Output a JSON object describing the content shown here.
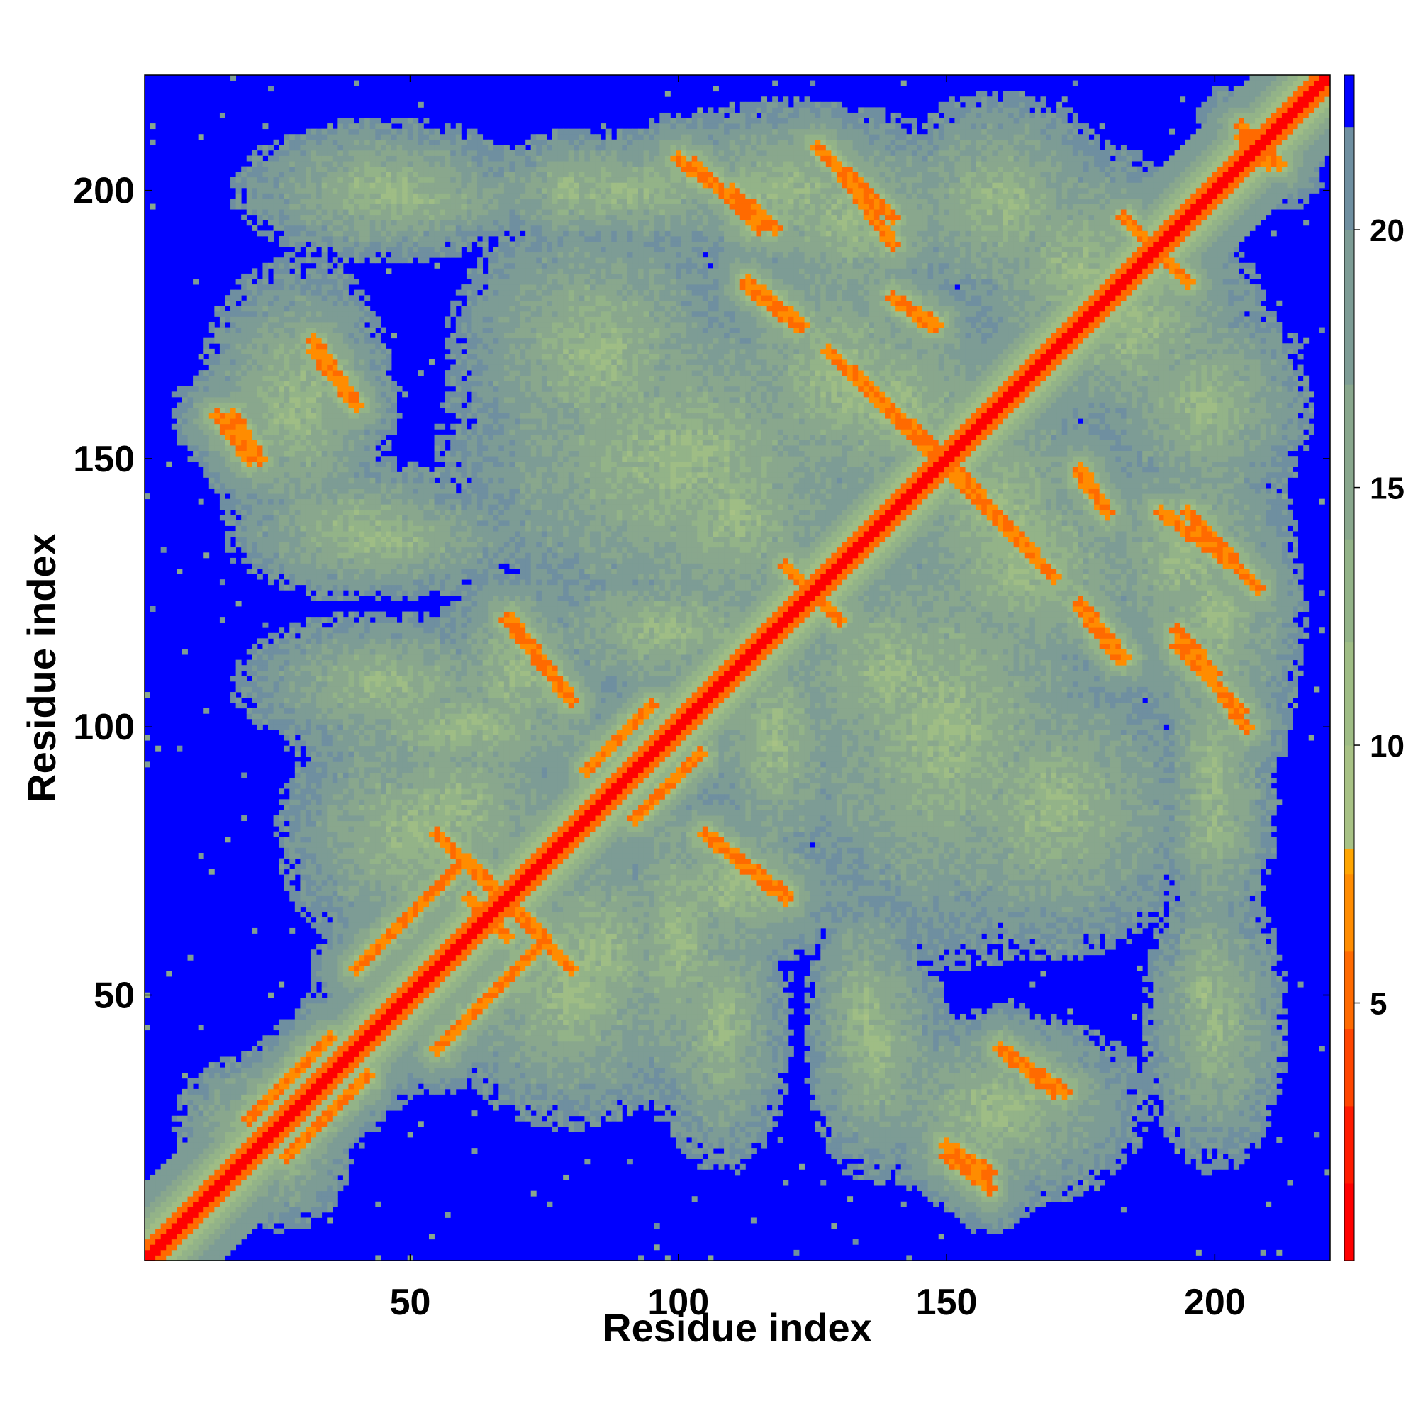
{
  "chart_data": {
    "type": "heatmap",
    "title": "",
    "xlabel": "Residue index",
    "ylabel": "Residue index",
    "xlim": [
      0.5,
      221.5
    ],
    "ylim": [
      0.5,
      221.5
    ],
    "n_residues": 221,
    "x_ticks": [
      50,
      100,
      150,
      200
    ],
    "y_ticks": [
      50,
      100,
      150,
      200
    ],
    "x_tick_labels": [
      "50",
      "100",
      "150",
      "200"
    ],
    "y_tick_labels": [
      "50",
      "100",
      "150",
      "200"
    ],
    "colorbar": {
      "range": [
        0,
        23
      ],
      "ticks": [
        5,
        10,
        15,
        20
      ],
      "tick_labels": [
        "5",
        "10",
        "15",
        "20"
      ],
      "colors": [
        "#ff0000",
        "#ff1a00",
        "#ff4500",
        "#ff6a00",
        "#ff8c00",
        "#ffa500",
        "#a8c285",
        "#9fbd85",
        "#93b388",
        "#89a78d",
        "#7d9c95",
        "#6f8fa0",
        "#0000ff"
      ],
      "bounds": [
        0,
        1.5,
        3,
        4.5,
        6,
        7.5,
        8,
        10,
        12,
        14,
        17,
        20,
        22,
        23
      ]
    },
    "contact_segments": [
      {
        "from": [
          3,
          3
        ],
        "to": [
          220,
          220
        ],
        "kind": "diagonal"
      },
      {
        "from": [
          40,
          55
        ],
        "to": [
          60,
          75
        ],
        "kind": "parallel"
      },
      {
        "from": [
          83,
          92
        ],
        "to": [
          95,
          104
        ],
        "kind": "parallel"
      },
      {
        "from": [
          20,
          27
        ],
        "to": [
          35,
          42
        ],
        "kind": "parallel"
      },
      {
        "from": [
          64,
          72
        ],
        "to": [
          80,
          55
        ],
        "kind": "antiparallel"
      },
      {
        "from": [
          69,
          120
        ],
        "to": [
          80,
          105
        ],
        "kind": "antiparallel"
      },
      {
        "from": [
          105,
          80
        ],
        "to": [
          120,
          68
        ],
        "kind": "antiparallel"
      },
      {
        "from": [
          110,
          200
        ],
        "to": [
          118,
          193
        ],
        "kind": "antiparallel"
      },
      {
        "from": [
          100,
          206
        ],
        "to": [
          105,
          202
        ],
        "kind": "antiparallel"
      },
      {
        "from": [
          130,
          204
        ],
        "to": [
          140,
          190
        ],
        "kind": "antiparallel"
      },
      {
        "from": [
          113,
          182
        ],
        "to": [
          122,
          175
        ],
        "kind": "antiparallel"
      },
      {
        "from": [
          140,
          180
        ],
        "to": [
          147,
          175
        ],
        "kind": "antiparallel"
      },
      {
        "from": [
          130,
          168
        ],
        "to": [
          148,
          150
        ],
        "kind": "antiparallel"
      },
      {
        "from": [
          150,
          150
        ],
        "to": [
          170,
          128
        ],
        "kind": "antiparallel"
      },
      {
        "from": [
          175,
          148
        ],
        "to": [
          180,
          140
        ],
        "kind": "antiparallel"
      },
      {
        "from": [
          195,
          140
        ],
        "to": [
          208,
          126
        ],
        "kind": "antiparallel"
      },
      {
        "from": [
          175,
          123
        ],
        "to": [
          183,
          113
        ],
        "kind": "antiparallel"
      },
      {
        "from": [
          193,
          115
        ],
        "to": [
          205,
          103
        ],
        "kind": "antiparallel"
      },
      {
        "from": [
          183,
          195
        ],
        "to": [
          193,
          185
        ],
        "kind": "antiparallel"
      },
      {
        "from": [
          205,
          212
        ],
        "to": [
          210,
          205
        ],
        "kind": "antiparallel"
      },
      {
        "from": [
          17,
          158
        ],
        "to": [
          22,
          150
        ],
        "kind": "antiparallel"
      },
      {
        "from": [
          32,
          172
        ],
        "to": [
          40,
          160
        ],
        "kind": "antiparallel"
      },
      {
        "from": [
          160,
          40
        ],
        "to": [
          170,
          32
        ],
        "kind": "antiparallel"
      },
      {
        "from": [
          150,
          20
        ],
        "to": [
          158,
          14
        ],
        "kind": "antiparallel"
      },
      {
        "from": [
          125,
          125
        ],
        "to": [
          130,
          120
        ],
        "kind": "antiparallel"
      },
      {
        "from": [
          61,
          68
        ],
        "to": [
          67,
          62
        ],
        "kind": "antiparallel"
      }
    ],
    "contact_regions": [
      {
        "cx": 22,
        "cy": 26,
        "rx": 14,
        "ry": 12
      },
      {
        "cx": 28,
        "cy": 160,
        "rx": 16,
        "ry": 24
      },
      {
        "cx": 45,
        "cy": 135,
        "rx": 26,
        "ry": 10
      },
      {
        "cx": 50,
        "cy": 198,
        "rx": 25,
        "ry": 7
      },
      {
        "cx": 60,
        "cy": 100,
        "rx": 30,
        "ry": 12
      },
      {
        "cx": 58,
        "cy": 85,
        "rx": 22,
        "ry": 18
      },
      {
        "cx": 80,
        "cy": 50,
        "rx": 22,
        "ry": 22
      },
      {
        "cx": 90,
        "cy": 200,
        "rx": 30,
        "ry": 10
      },
      {
        "cx": 100,
        "cy": 150,
        "rx": 40,
        "ry": 30
      },
      {
        "cx": 98,
        "cy": 118,
        "rx": 25,
        "ry": 12
      },
      {
        "cx": 110,
        "cy": 70,
        "rx": 18,
        "ry": 15
      },
      {
        "cx": 108,
        "cy": 45,
        "rx": 12,
        "ry": 25
      },
      {
        "cx": 132,
        "cy": 195,
        "rx": 22,
        "ry": 18
      },
      {
        "cx": 140,
        "cy": 160,
        "rx": 25,
        "ry": 20
      },
      {
        "cx": 140,
        "cy": 110,
        "rx": 22,
        "ry": 22
      },
      {
        "cx": 137,
        "cy": 40,
        "rx": 12,
        "ry": 22
      },
      {
        "cx": 160,
        "cy": 30,
        "rx": 25,
        "ry": 15
      },
      {
        "cx": 165,
        "cy": 130,
        "rx": 25,
        "ry": 22
      },
      {
        "cx": 170,
        "cy": 85,
        "rx": 25,
        "ry": 25
      },
      {
        "cx": 175,
        "cy": 185,
        "rx": 20,
        "ry": 22
      },
      {
        "cx": 198,
        "cy": 160,
        "rx": 18,
        "ry": 20
      },
      {
        "cx": 200,
        "cy": 120,
        "rx": 15,
        "ry": 25
      },
      {
        "cx": 200,
        "cy": 45,
        "rx": 12,
        "ry": 25
      },
      {
        "cx": 200,
        "cy": 80,
        "rx": 10,
        "ry": 12
      }
    ]
  }
}
